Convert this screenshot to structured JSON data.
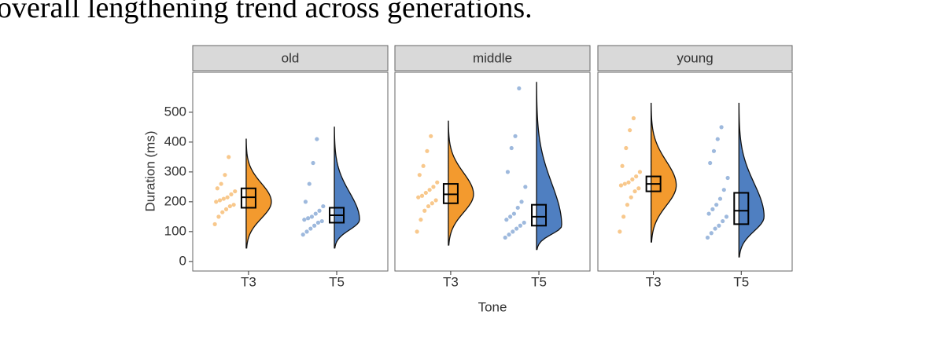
{
  "text": "overall lengthening trend across generations.",
  "chart_data": {
    "type": "raincloud",
    "x_label": "Tone",
    "y_label": "Duration (ms)",
    "categories": [
      "T3",
      "T5"
    ],
    "colors": [
      "#f39a2e",
      "#4f7fc1"
    ],
    "ylim": [
      -32,
      634
    ],
    "yticks": [
      0,
      100,
      200,
      300,
      400,
      500
    ],
    "facets": [
      {
        "name": "old",
        "groups": [
          {
            "box": [
              180,
              215,
              245
            ],
            "range": [
              45,
              410
            ],
            "mode": 200,
            "points": [
              125,
              150,
              165,
              175,
              185,
              190,
              200,
              205,
              210,
              215,
              225,
              235,
              245,
              260,
              290,
              350
            ]
          },
          {
            "box": [
              130,
              155,
              180
            ],
            "range": [
              45,
              450
            ],
            "mode": 140,
            "points": [
              90,
              100,
              110,
              120,
              130,
              135,
              140,
              145,
              150,
              160,
              170,
              185,
              200,
              260,
              330,
              410
            ]
          }
        ]
      },
      {
        "name": "middle",
        "groups": [
          {
            "box": [
              195,
              225,
              260
            ],
            "range": [
              55,
              470
            ],
            "mode": 225,
            "points": [
              100,
              140,
              170,
              185,
              195,
              205,
              215,
              220,
              230,
              240,
              250,
              265,
              290,
              320,
              370,
              420
            ]
          },
          {
            "box": [
              120,
              150,
              190
            ],
            "range": [
              40,
              600
            ],
            "mode": 120,
            "points": [
              80,
              90,
              100,
              110,
              120,
              130,
              140,
              150,
              160,
              180,
              200,
              250,
              300,
              380,
              420,
              580
            ]
          }
        ]
      },
      {
        "name": "young",
        "groups": [
          {
            "box": [
              235,
              260,
              285
            ],
            "range": [
              65,
              530
            ],
            "mode": 255,
            "points": [
              100,
              150,
              190,
              215,
              235,
              245,
              255,
              260,
              265,
              275,
              285,
              300,
              320,
              380,
              440,
              480
            ]
          },
          {
            "box": [
              125,
              170,
              230
            ],
            "range": [
              15,
              530
            ],
            "mode": 150,
            "points": [
              80,
              95,
              110,
              120,
              135,
              150,
              160,
              175,
              190,
              210,
              240,
              280,
              330,
              370,
              410,
              450
            ]
          }
        ]
      }
    ]
  }
}
